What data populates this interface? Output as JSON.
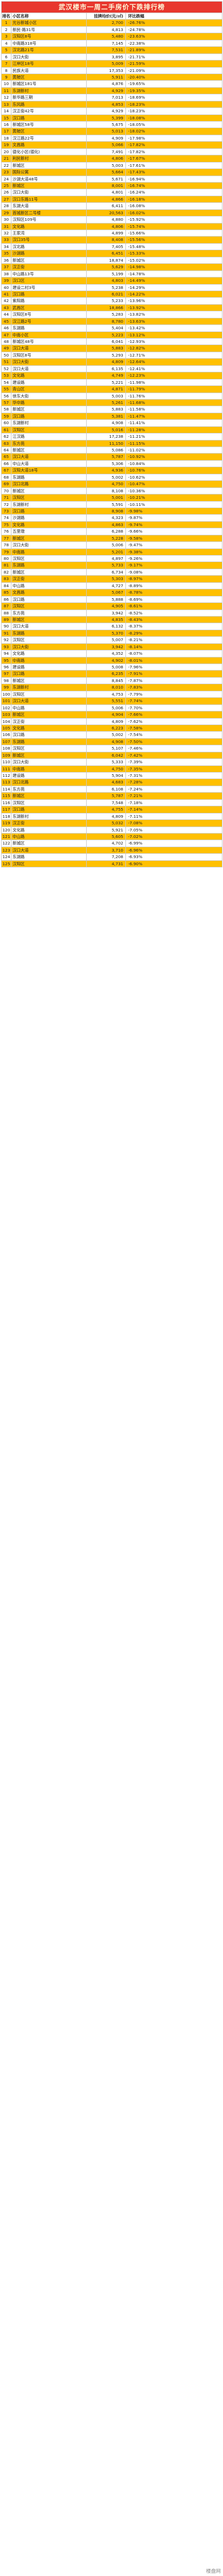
{
  "table": {
    "title": "武汉楼市一周二手房价下跌排行榜",
    "headers": [
      "排名",
      "小区名称",
      "挂牌均价(元/㎡)",
      "环比跌幅"
    ],
    "rows": [
      [
        "1",
        "光谷新城小区",
        "2,700",
        "-26.76%"
      ],
      [
        "2",
        "新民·路31号",
        "4,813",
        "-24.78%"
      ],
      [
        "3",
        "汉阳区8号",
        "5,480",
        "-23.63%"
      ],
      [
        "4",
        "中南路318号",
        "7,145",
        "-22.38%"
      ],
      [
        "5",
        "汉北路21号",
        "7,531",
        "-21.89%"
      ],
      [
        "6",
        "汉口大街",
        "3,895",
        "-21.71%"
      ],
      [
        "7",
        "江岸区18号",
        "5,009",
        "-21.59%"
      ],
      [
        "8",
        "民族大道",
        "17,353",
        "-21.09%"
      ],
      [
        "9",
        "黄陂区",
        "5,911",
        "-20.40%"
      ],
      [
        "10",
        "新城区181号",
        "4,876",
        "-19.65%"
      ],
      [
        "11",
        "东湖新村",
        "4,929",
        "-19.35%"
      ],
      [
        "12",
        "新华路三期",
        "7,013",
        "-18.69%"
      ],
      [
        "13",
        "东风路",
        "4,853",
        "-18.23%"
      ],
      [
        "14",
        "汉正街42号",
        "4,929",
        "-18.23%"
      ],
      [
        "15",
        "汉口路",
        "5,399",
        "-18.08%"
      ],
      [
        "16",
        "新城区58号",
        "5,675",
        "-18.05%"
      ],
      [
        "17",
        "黄陂区",
        "5,013",
        "-18.02%"
      ],
      [
        "18",
        "汉江路22号",
        "4,909",
        "-17.98%"
      ],
      [
        "19",
        "文昌路",
        "5,066",
        "-17.82%"
      ],
      [
        "20",
        "德化小区(德化)",
        "7,491",
        "-17.82%"
      ],
      [
        "21",
        "利民新村",
        "4,806",
        "-17.67%"
      ],
      [
        "22",
        "新城区",
        "5,003",
        "-17.61%"
      ],
      [
        "23",
        "国际公寓",
        "5,664",
        "-17.43%"
      ],
      [
        "24",
        "沙湖大道48号",
        "5,671",
        "-16.94%"
      ],
      [
        "25",
        "新城区",
        "8,001",
        "-16.74%"
      ],
      [
        "26",
        "汉口大街",
        "4,801",
        "-16.24%"
      ],
      [
        "27",
        "汉口东路11号",
        "4,866",
        "-16.18%"
      ],
      [
        "28",
        "东湖大道",
        "6,411",
        "-16.08%"
      ],
      [
        "29",
        "首城新区二号楼",
        "20,563",
        "-16.02%"
      ],
      [
        "30",
        "汉阳区109号",
        "4,880",
        "-15.92%"
      ],
      [
        "31",
        "文化路",
        "4,806",
        "-15.74%"
      ],
      [
        "32",
        "王家湾",
        "4,899",
        "-15.66%"
      ],
      [
        "33",
        "汉口35号",
        "8,408",
        "-15.56%"
      ],
      [
        "34",
        "汉北路",
        "7,405",
        "-15.48%"
      ],
      [
        "35",
        "沙湖路",
        "6,451",
        "-15.33%"
      ],
      [
        "36",
        "新城区",
        "18,874",
        "-15.02%"
      ],
      [
        "37",
        "汉正街",
        "5,629",
        "-14.98%"
      ],
      [
        "38",
        "中山路13号",
        "5,199",
        "-14.78%"
      ],
      [
        "39",
        "汉口区",
        "4,803",
        "-14.49%"
      ],
      [
        "40",
        "建设二村3号",
        "5,238",
        "-14.29%"
      ],
      [
        "41",
        "汉口路",
        "6,021",
        "-14.22%"
      ],
      [
        "42",
        "紫阳路",
        "5,233",
        "-13.96%"
      ],
      [
        "43",
        "武昌区",
        "18,866",
        "-13.92%"
      ],
      [
        "44",
        "汉阳区8号",
        "5,283",
        "-13.82%"
      ],
      [
        "45",
        "汉江路2号",
        "8,780",
        "-13.63%"
      ],
      [
        "46",
        "东湖路",
        "5,404",
        "-13.42%"
      ],
      [
        "47",
        "中南小区",
        "5,223",
        "-13.12%"
      ],
      [
        "48",
        "新城区48号",
        "6,041",
        "-12.93%"
      ],
      [
        "49",
        "汉口大道",
        "5,883",
        "-12.82%"
      ],
      [
        "50",
        "汉阳区8号",
        "5,293",
        "-12.71%"
      ],
      [
        "51",
        "汉口大街",
        "4,809",
        "-12.64%"
      ],
      [
        "52",
        "汉口大道",
        "6,135",
        "-12.41%"
      ],
      [
        "53",
        "文化路",
        "4,749",
        "-12.23%"
      ],
      [
        "54",
        "建设路",
        "5,221",
        "-11.98%"
      ],
      [
        "55",
        "青山区",
        "4,871",
        "-11.79%"
      ],
      [
        "56",
        "徐东大街",
        "5,003",
        "-11.76%"
      ],
      [
        "57",
        "华中路",
        "5,261",
        "-11.68%"
      ],
      [
        "58",
        "新城区",
        "5,883",
        "-11.58%"
      ],
      [
        "59",
        "汉口路",
        "5,381",
        "-11.47%"
      ],
      [
        "60",
        "东湖新村",
        "4,908",
        "-11.41%"
      ],
      [
        "61",
        "汉阳区",
        "5,016",
        "-11.28%"
      ],
      [
        "62",
        "江汉路",
        "17,238",
        "-11.21%"
      ],
      [
        "63",
        "东方苑",
        "11,150",
        "-11.15%"
      ],
      [
        "64",
        "新城区",
        "5,086",
        "-11.02%"
      ],
      [
        "65",
        "汉口大道",
        "5,787",
        "-10.92%"
      ],
      [
        "66",
        "中山大道",
        "5,306",
        "-10.84%"
      ],
      [
        "67",
        "汉阳大道18号",
        "4,936",
        "-10.76%"
      ],
      [
        "68",
        "东湖路",
        "5,002",
        "-10.62%"
      ],
      [
        "69",
        "汉口北路",
        "4,750",
        "-10.47%"
      ],
      [
        "70",
        "新城区",
        "8,108",
        "-10.36%"
      ],
      [
        "71",
        "汉阳区",
        "5,001",
        "-10.21%"
      ],
      [
        "72",
        "东湖新村",
        "5,591",
        "-10.11%"
      ],
      [
        "73",
        "汉口路",
        "8,908",
        "-9.98%"
      ],
      [
        "74",
        "沙湖路",
        "4,323",
        "-9.87%"
      ],
      [
        "75",
        "文化路",
        "4,863",
        "-9.74%"
      ],
      [
        "76",
        "五里墩",
        "6,288",
        "-9.66%"
      ],
      [
        "77",
        "新城区",
        "5,228",
        "-9.58%"
      ],
      [
        "78",
        "汉口大街",
        "5,006",
        "-9.47%"
      ],
      [
        "79",
        "中南路",
        "5,201",
        "-9.38%"
      ],
      [
        "80",
        "汉阳区",
        "4,897",
        "-9.26%"
      ],
      [
        "81",
        "东湖路",
        "5,733",
        "-9.17%"
      ],
      [
        "82",
        "新城区",
        "6,734",
        "-9.08%"
      ],
      [
        "83",
        "汉正街",
        "5,303",
        "-8.97%"
      ],
      [
        "84",
        "中山路",
        "4,727",
        "-8.89%"
      ],
      [
        "85",
        "文昌路",
        "5,067",
        "-8.78%"
      ],
      [
        "86",
        "汉口路",
        "5,888",
        "-8.69%"
      ],
      [
        "87",
        "汉阳区",
        "4,905",
        "-8.61%"
      ],
      [
        "88",
        "东方苑",
        "3,942",
        "-8.52%"
      ],
      [
        "89",
        "新城区",
        "4,835",
        "-8.43%"
      ],
      [
        "90",
        "汉口大道",
        "6,132",
        "-8.37%"
      ],
      [
        "91",
        "东湖路",
        "5,370",
        "-8.29%"
      ],
      [
        "92",
        "汉阳区",
        "5,007",
        "-8.21%"
      ],
      [
        "93",
        "汉口大街",
        "3,942",
        "-8.14%"
      ],
      [
        "94",
        "文化路",
        "4,352",
        "-8.07%"
      ],
      [
        "95",
        "中南路",
        "4,902",
        "-8.01%"
      ],
      [
        "96",
        "建设路",
        "5,008",
        "-7.96%"
      ],
      [
        "97",
        "汉口路",
        "6,235",
        "-7.91%"
      ],
      [
        "98",
        "新城区",
        "8,845",
        "-7.87%"
      ],
      [
        "99",
        "东湖新村",
        "8,010",
        "-7.83%"
      ],
      [
        "100",
        "汉阳区",
        "4,753",
        "-7.79%"
      ],
      [
        "101",
        "汉口大道",
        "5,551",
        "-7.74%"
      ],
      [
        "102",
        "中山路",
        "5,006",
        "-7.70%"
      ],
      [
        "103",
        "新城区",
        "4,904",
        "-7.66%"
      ],
      [
        "104",
        "汉正街",
        "4,809",
        "-7.62%"
      ],
      [
        "105",
        "文化路",
        "6,223",
        "-7.58%"
      ],
      [
        "106",
        "汉口路",
        "5,002",
        "-7.54%"
      ],
      [
        "107",
        "东湖路",
        "4,908",
        "-7.50%"
      ],
      [
        "108",
        "汉阳区",
        "5,107",
        "-7.46%"
      ],
      [
        "109",
        "新城区",
        "6,042",
        "-7.42%"
      ],
      [
        "110",
        "汉口大街",
        "5,333",
        "-7.39%"
      ],
      [
        "111",
        "中南路",
        "4,750",
        "-7.35%"
      ],
      [
        "112",
        "建设路",
        "5,904",
        "-7.31%"
      ],
      [
        "113",
        "汉口北路",
        "4,683",
        "-7.28%"
      ],
      [
        "114",
        "东方苑",
        "6,108",
        "-7.24%"
      ],
      [
        "115",
        "新城区",
        "5,787",
        "-7.21%"
      ],
      [
        "116",
        "汉阳区",
        "7,548",
        "-7.18%"
      ],
      [
        "117",
        "汉口路",
        "4,755",
        "-7.14%"
      ],
      [
        "118",
        "东湖新村",
        "4,809",
        "-7.11%"
      ],
      [
        "119",
        "汉正街",
        "5,032",
        "-7.08%"
      ],
      [
        "120",
        "文化路",
        "5,921",
        "-7.05%"
      ],
      [
        "121",
        "中山路",
        "5,605",
        "-7.02%"
      ],
      [
        "122",
        "新城区",
        "4,702",
        "-6.99%"
      ],
      [
        "123",
        "汉口大道",
        "3,710",
        "-6.96%"
      ],
      [
        "124",
        "东湖路",
        "7,208",
        "-6.93%"
      ],
      [
        "125",
        "汉阳区",
        "4,731",
        "-6.90%"
      ]
    ]
  },
  "watermark": "楼盘网"
}
